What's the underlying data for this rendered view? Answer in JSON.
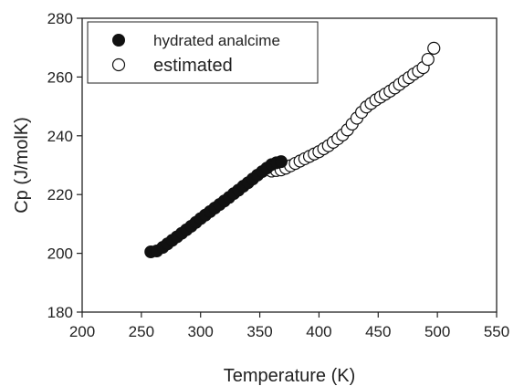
{
  "chart_data": {
    "type": "scatter",
    "title": "",
    "xlabel": "Temperature (K)",
    "ylabel": "Cp (J/molK)",
    "xlim": [
      200,
      550
    ],
    "ylim": [
      180,
      280
    ],
    "x_ticks": [
      200,
      250,
      300,
      350,
      400,
      450,
      500,
      550
    ],
    "y_ticks": [
      180,
      200,
      220,
      240,
      260,
      280
    ],
    "x_tick_labels": [
      "200",
      "250",
      "300",
      "350",
      "400",
      "450",
      "500",
      "550"
    ],
    "y_tick_labels": [
      "180",
      "200",
      "220",
      "240",
      "260",
      "280"
    ],
    "grid": false,
    "legend_position": "top-left",
    "series": [
      {
        "name": "hydrated analcime",
        "marker": "filled-circle",
        "color": "#111111",
        "x": [
          258,
          263,
          268,
          272,
          276,
          280,
          284,
          288,
          292,
          296,
          300,
          304,
          308,
          312,
          316,
          320,
          324,
          328,
          332,
          336,
          340,
          344,
          348,
          352,
          356,
          360,
          364,
          368
        ],
        "y": [
          200.5,
          200.8,
          202.0,
          203.2,
          204.4,
          205.6,
          206.8,
          208.0,
          209.2,
          210.5,
          211.8,
          213.0,
          214.2,
          215.4,
          216.6,
          217.8,
          219.0,
          220.3,
          221.5,
          222.8,
          224.0,
          225.3,
          226.6,
          227.8,
          229.0,
          230.2,
          230.8,
          231.2
        ]
      },
      {
        "name": "estimated",
        "marker": "open-circle",
        "color": "#111111",
        "x": [
          360,
          364,
          368,
          372,
          376,
          380,
          384,
          388,
          392,
          396,
          400,
          404,
          408,
          412,
          416,
          420,
          424,
          428,
          432,
          436,
          440,
          444,
          448,
          452,
          456,
          460,
          464,
          468,
          472,
          476,
          480,
          484,
          488,
          492,
          497
        ],
        "y": [
          228.0,
          228.2,
          228.4,
          229.0,
          229.8,
          230.6,
          231.4,
          232.2,
          233.0,
          233.8,
          234.6,
          235.6,
          236.6,
          237.8,
          239.0,
          240.3,
          242.0,
          244.0,
          246.0,
          248.0,
          249.8,
          251.0,
          252.2,
          253.2,
          254.2,
          255.2,
          256.3,
          257.5,
          258.7,
          259.8,
          261.0,
          262.0,
          263.2,
          266.0,
          269.8
        ]
      }
    ]
  }
}
